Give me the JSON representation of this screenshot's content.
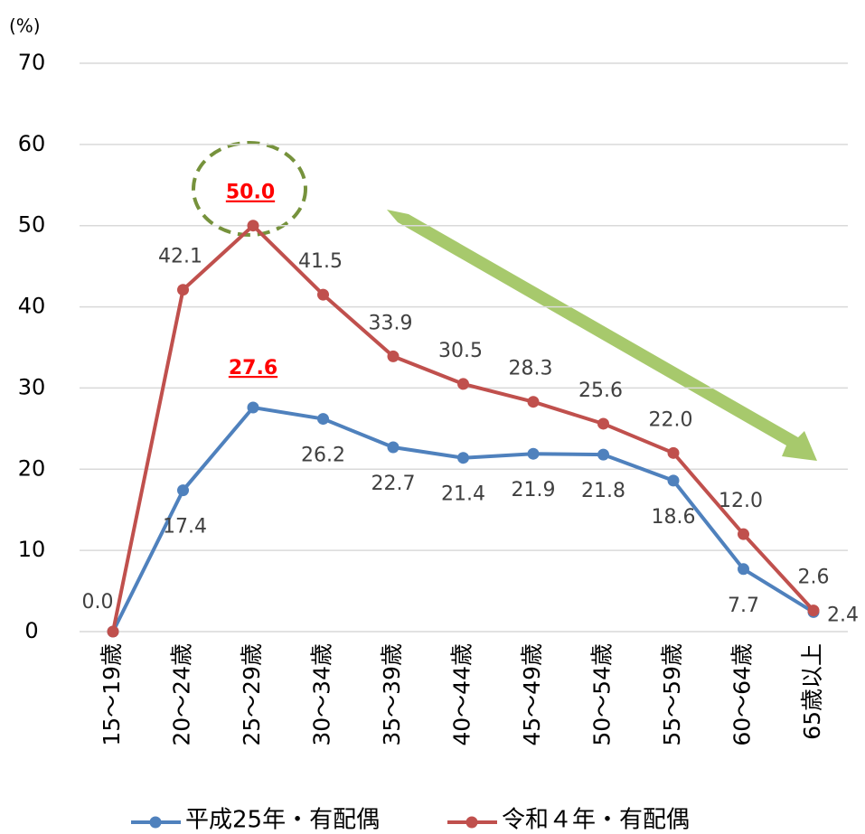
{
  "chart_data": {
    "type": "line",
    "ylabel": "(%)",
    "categories": [
      "15～19歳",
      "20～24歳",
      "25～29歳",
      "30～34歳",
      "35～39歳",
      "40～44歳",
      "45～49歳",
      "50～54歳",
      "55～59歳",
      "60～64歳",
      "65歳以上"
    ],
    "series": [
      {
        "name": "平成25年・有配偶",
        "color": "#4f81bd",
        "values": [
          0,
          17.4,
          27.6,
          26.2,
          22.7,
          21.4,
          21.9,
          21.8,
          18.6,
          7.7,
          2.4
        ],
        "value_labels": [
          "0.0",
          "17.4",
          "27.6",
          "26.2",
          "22.7",
          "21.4",
          "21.9",
          "21.8",
          "18.6",
          "7.7",
          "2.4"
        ]
      },
      {
        "name": "令和４年・有配偶",
        "color": "#c0504d",
        "values": [
          0,
          42.1,
          50.0,
          41.5,
          33.9,
          30.5,
          28.3,
          25.6,
          22.0,
          12.0,
          2.6
        ],
        "value_labels": [
          null,
          "42.1",
          "50.0",
          "41.5",
          "33.9",
          "30.5",
          "28.3",
          "25.6",
          "22.0",
          "12.0",
          "2.6"
        ]
      }
    ],
    "highlight": {
      "index": 2,
      "color": "#ff0000"
    },
    "ylim": [
      0,
      70
    ],
    "yticks": [
      0,
      10,
      20,
      30,
      40,
      50,
      60,
      70
    ],
    "grid": true,
    "legend": "bottom"
  }
}
